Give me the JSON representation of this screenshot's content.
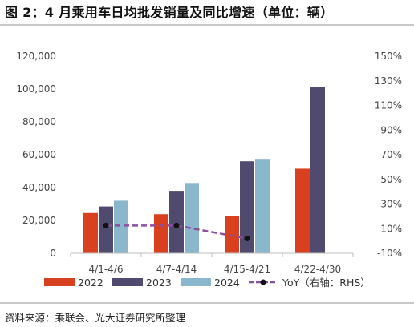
{
  "header": {
    "title": "图 2：4 月乘用车日均批发销量及同比增速（单位：辆）"
  },
  "footer": {
    "source": "资料来源：乘联会、光大证券研究所整理"
  },
  "chart_data": {
    "type": "bar",
    "categories": [
      "4/1-4/6",
      "4/7-4/14",
      "4/15-4/21",
      "4/22-4/30"
    ],
    "series": [
      {
        "name": "2022",
        "type": "bar",
        "axis": "left",
        "color": "#d9401f",
        "values": [
          24500,
          23800,
          22500,
          51500
        ]
      },
      {
        "name": "2023",
        "type": "bar",
        "axis": "left",
        "color": "#4f4a6e",
        "values": [
          28500,
          38000,
          56000,
          101000
        ]
      },
      {
        "name": "2024",
        "type": "bar",
        "axis": "left",
        "color": "#8ab7cc",
        "values": [
          32000,
          42800,
          57000,
          null
        ]
      },
      {
        "name": "YoY（右轴：RHS）",
        "type": "line",
        "axis": "right",
        "color": "#8a4f9e",
        "marker_color": "#111111",
        "line_style": "dashed",
        "values": [
          12.5,
          12.5,
          2.0,
          null
        ]
      }
    ],
    "y_left": {
      "min": 0,
      "max": 120000,
      "step": 20000,
      "tick_labels": [
        "0",
        "20,000",
        "40,000",
        "60,000",
        "80,000",
        "100,000",
        "120,000"
      ]
    },
    "y_right": {
      "min": -10,
      "max": 150,
      "step": 20,
      "tick_labels": [
        "-10%",
        "10%",
        "30%",
        "50%",
        "70%",
        "90%",
        "110%",
        "130%",
        "150%"
      ]
    },
    "grid": false,
    "legend_position": "bottom"
  }
}
